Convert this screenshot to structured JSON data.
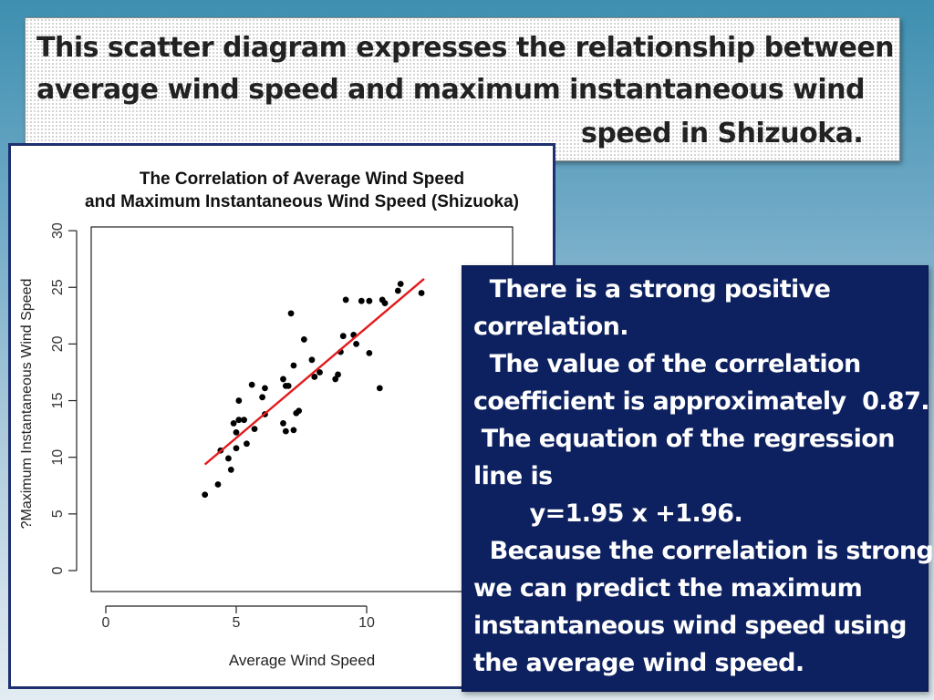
{
  "heading": {
    "lines": [
      "This scatter diagram expresses the relationship between",
      "average wind speed and maximum instantaneous wind",
      "speed in Shizuoka."
    ]
  },
  "chart_data": {
    "type": "scatter",
    "title": "The Correlation of Average Wind Speed",
    "subtitle": "and Maximum Instantaneous Wind Speed (Shizuoka)",
    "xlabel": "Average Wind Speed",
    "ylabel": "?Maximum Instantaneous Wind Speed",
    "xlim": [
      0,
      15
    ],
    "ylim": [
      0,
      30
    ],
    "xticks": [
      0,
      5,
      10
    ],
    "yticks": [
      0,
      5,
      10,
      15,
      20,
      25,
      30
    ],
    "grid": false,
    "point_color": "#000000",
    "line_color": "#e41a1c",
    "regression": {
      "slope": 1.95,
      "intercept": 1.96,
      "x_range": [
        3.8,
        12.2
      ]
    },
    "points": [
      [
        3.8,
        6.7
      ],
      [
        4.3,
        7.6
      ],
      [
        4.4,
        10.6
      ],
      [
        4.7,
        9.9
      ],
      [
        4.8,
        8.9
      ],
      [
        4.9,
        13.0
      ],
      [
        5.0,
        10.8
      ],
      [
        5.0,
        12.2
      ],
      [
        5.1,
        13.3
      ],
      [
        5.1,
        15.0
      ],
      [
        5.3,
        13.3
      ],
      [
        5.4,
        11.2
      ],
      [
        5.6,
        16.4
      ],
      [
        5.7,
        12.5
      ],
      [
        6.0,
        15.3
      ],
      [
        6.1,
        13.8
      ],
      [
        6.1,
        16.1
      ],
      [
        6.8,
        16.9
      ],
      [
        6.8,
        13.0
      ],
      [
        6.9,
        12.3
      ],
      [
        6.9,
        16.3
      ],
      [
        7.0,
        16.3
      ],
      [
        7.1,
        22.7
      ],
      [
        7.2,
        12.4
      ],
      [
        7.2,
        18.1
      ],
      [
        7.3,
        13.9
      ],
      [
        7.4,
        14.1
      ],
      [
        7.6,
        20.4
      ],
      [
        7.9,
        18.6
      ],
      [
        8.0,
        17.1
      ],
      [
        8.2,
        17.5
      ],
      [
        8.8,
        16.9
      ],
      [
        8.9,
        17.3
      ],
      [
        9.0,
        19.3
      ],
      [
        9.1,
        20.7
      ],
      [
        9.2,
        23.9
      ],
      [
        9.5,
        20.8
      ],
      [
        9.6,
        20.0
      ],
      [
        9.8,
        23.8
      ],
      [
        10.1,
        19.2
      ],
      [
        10.1,
        23.8
      ],
      [
        10.5,
        16.1
      ],
      [
        10.6,
        23.9
      ],
      [
        10.7,
        23.6
      ],
      [
        11.2,
        24.7
      ],
      [
        11.3,
        25.3
      ],
      [
        12.1,
        24.5
      ]
    ]
  },
  "note": {
    "lines": [
      "  There is a strong positive",
      "correlation.",
      "  The value of the correlation",
      "coefficient is approximately  0.87.",
      " The equation of the regression",
      "line is",
      "       y=1.95 x +1.96.",
      "  Because the correlation is strong,",
      "we can predict the maximum",
      "instantaneous wind speed using",
      "the average wind speed."
    ]
  }
}
